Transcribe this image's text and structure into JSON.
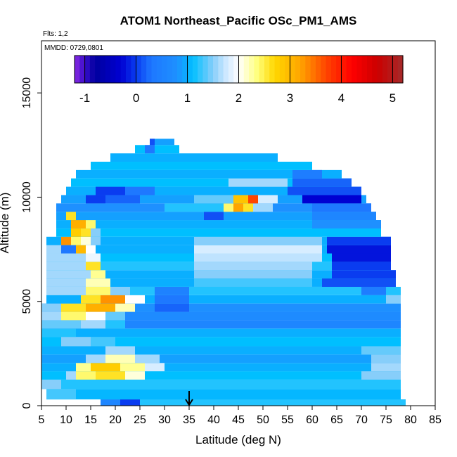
{
  "chart_data": {
    "type": "heatmap",
    "title": "ATOM1 Northeast_Pacific OSc_PM1_AMS",
    "flights_note": "Flts: 1,2",
    "date_note": "MMDD: 0729,0801",
    "xlabel": "Latitude (deg N)",
    "ylabel": "Altitude (m)",
    "xlim": [
      5,
      85
    ],
    "ylim": [
      0,
      17500
    ],
    "x_ticks": [
      5,
      10,
      15,
      20,
      25,
      30,
      35,
      40,
      45,
      50,
      55,
      60,
      65,
      70,
      75,
      80,
      85
    ],
    "y_ticks": [
      0,
      5000,
      10000,
      15000
    ],
    "colorbar": {
      "ticks": [
        -1,
        0,
        1,
        2,
        3,
        4,
        5
      ],
      "range": [
        -1.2,
        5.2
      ],
      "stops": [
        {
          "v": -1.2,
          "c": "#8a2be2"
        },
        {
          "v": -1.0,
          "c": "#3a0dcc"
        },
        {
          "v": -0.8,
          "c": "#00009e"
        },
        {
          "v": -0.3,
          "c": "#0000d2"
        },
        {
          "v": 0.0,
          "c": "#0a3cf0"
        },
        {
          "v": 0.3,
          "c": "#1e78ff"
        },
        {
          "v": 0.8,
          "c": "#1e90ff"
        },
        {
          "v": 1.1,
          "c": "#00bfff"
        },
        {
          "v": 1.5,
          "c": "#87cefa"
        },
        {
          "v": 1.75,
          "c": "#cde8ff"
        },
        {
          "v": 2.0,
          "c": "#ffffff"
        },
        {
          "v": 2.35,
          "c": "#ffff80"
        },
        {
          "v": 2.7,
          "c": "#ffd700"
        },
        {
          "v": 3.2,
          "c": "#ffa500"
        },
        {
          "v": 3.7,
          "c": "#ff4500"
        },
        {
          "v": 4.2,
          "c": "#ff0000"
        },
        {
          "v": 4.7,
          "c": "#cc0000"
        },
        {
          "v": 5.2,
          "c": "#a52a2a"
        }
      ]
    },
    "marker_arrow_latitude": 35,
    "rows": [
      {
        "y0": 0,
        "y1": 300,
        "x0": 17,
        "x1": 79,
        "v": 1.0,
        "hot": [
          [
            17,
            21,
            0.6
          ],
          [
            21,
            25,
            0.0
          ],
          [
            25,
            79,
            1.2
          ]
        ]
      },
      {
        "y0": 300,
        "y1": 800,
        "x0": 6,
        "x1": 78,
        "v": 1.05,
        "hot": [
          [
            6,
            12,
            1.3
          ]
        ]
      },
      {
        "y0": 800,
        "y1": 1250,
        "x0": 5,
        "x1": 78,
        "v": 1.2,
        "hot": [
          [
            5,
            9,
            1.5
          ]
        ]
      },
      {
        "y0": 1250,
        "y1": 1650,
        "x0": 5,
        "x1": 78,
        "v": 1.1,
        "hot": [
          [
            10,
            12,
            1.6
          ],
          [
            12,
            16,
            2.4
          ],
          [
            16,
            22,
            2.6
          ],
          [
            22,
            26,
            2.1
          ],
          [
            70,
            78,
            1.5
          ]
        ]
      },
      {
        "y0": 1650,
        "y1": 2050,
        "x0": 5,
        "x1": 78,
        "v": 1.0,
        "hot": [
          [
            12,
            15,
            2.3
          ],
          [
            15,
            21,
            2.8
          ],
          [
            21,
            26,
            2.3
          ],
          [
            26,
            30,
            1.8
          ],
          [
            72,
            78,
            1.6
          ]
        ]
      },
      {
        "y0": 2050,
        "y1": 2450,
        "x0": 5,
        "x1": 78,
        "v": 0.9,
        "hot": [
          [
            14,
            18,
            1.6
          ],
          [
            18,
            24,
            2.2
          ],
          [
            24,
            29,
            1.6
          ],
          [
            72,
            78,
            1.5
          ]
        ]
      },
      {
        "y0": 2450,
        "y1": 2850,
        "x0": 5,
        "x1": 78,
        "v": 1.0,
        "hot": [
          [
            18,
            24,
            1.6
          ],
          [
            70,
            78,
            1.4
          ]
        ]
      },
      {
        "y0": 2850,
        "y1": 3300,
        "x0": 5,
        "x1": 78,
        "v": 1.1,
        "hot": [
          [
            9,
            15,
            1.5
          ],
          [
            15,
            20,
            1.3
          ]
        ]
      },
      {
        "y0": 3300,
        "y1": 3700,
        "x0": 5,
        "x1": 78,
        "v": 1.0,
        "hot": [
          [
            5,
            12,
            1.2
          ]
        ]
      },
      {
        "y0": 3700,
        "y1": 4100,
        "x0": 5,
        "x1": 78,
        "v": 0.6,
        "hot": [
          [
            5,
            13,
            1.4
          ],
          [
            13,
            18,
            1.6
          ],
          [
            18,
            22,
            1.2
          ]
        ]
      },
      {
        "y0": 4100,
        "y1": 4500,
        "x0": 5,
        "x1": 78,
        "v": 0.7,
        "hot": [
          [
            5,
            9,
            1.6
          ],
          [
            9,
            14,
            2.4
          ],
          [
            14,
            18,
            2.0
          ],
          [
            18,
            22,
            1.4
          ]
        ]
      },
      {
        "y0": 4500,
        "y1": 4900,
        "x0": 5,
        "x1": 78,
        "v": 0.8,
        "hot": [
          [
            5,
            9,
            1.5
          ],
          [
            9,
            14,
            2.6
          ],
          [
            14,
            20,
            3.1
          ],
          [
            20,
            24,
            2.2
          ],
          [
            28,
            35,
            0.2
          ]
        ]
      },
      {
        "y0": 4900,
        "y1": 5300,
        "x0": 6,
        "x1": 78,
        "v": 1.0,
        "hot": [
          [
            13,
            17,
            2.6
          ],
          [
            17,
            22,
            3.3
          ],
          [
            22,
            26,
            2.0
          ],
          [
            28,
            35,
            0.3
          ],
          [
            75,
            78,
            1.5
          ]
        ]
      },
      {
        "y0": 5300,
        "y1": 5700,
        "x0": 6,
        "x1": 78,
        "v": 1.2,
        "hot": [
          [
            6,
            14,
            1.6
          ],
          [
            14,
            19,
            2.4
          ],
          [
            19,
            23,
            1.5
          ],
          [
            28,
            35,
            0.5
          ],
          [
            70,
            75,
            0.4
          ]
        ]
      },
      {
        "y0": 5700,
        "y1": 6100,
        "x0": 6,
        "x1": 77,
        "v": 1.0,
        "hot": [
          [
            6,
            14,
            1.6
          ],
          [
            14,
            19,
            2.2
          ],
          [
            36,
            60,
            1.3
          ],
          [
            62,
            77,
            0.1
          ]
        ]
      },
      {
        "y0": 6100,
        "y1": 6500,
        "x0": 6,
        "x1": 77,
        "v": 1.0,
        "hot": [
          [
            6,
            15,
            1.6
          ],
          [
            15,
            18,
            2.3
          ],
          [
            36,
            60,
            1.5
          ],
          [
            64,
            77,
            0.0
          ]
        ]
      },
      {
        "y0": 6500,
        "y1": 6900,
        "x0": 6,
        "x1": 76,
        "v": 1.2,
        "hot": [
          [
            6,
            14,
            1.6
          ],
          [
            14,
            17,
            2.6
          ],
          [
            36,
            60,
            1.6
          ],
          [
            64,
            76,
            0.0
          ]
        ]
      },
      {
        "y0": 6900,
        "y1": 7300,
        "x0": 6,
        "x1": 76,
        "v": 1.1,
        "hot": [
          [
            6,
            14,
            1.6
          ],
          [
            14,
            17,
            1.9
          ],
          [
            36,
            62,
            1.7
          ],
          [
            64,
            76,
            -0.2
          ]
        ]
      },
      {
        "y0": 7300,
        "y1": 7700,
        "x0": 6,
        "x1": 76,
        "v": 1.0,
        "hot": [
          [
            6,
            9,
            1.6
          ],
          [
            9,
            12,
            0.3
          ],
          [
            12,
            14,
            3.0
          ],
          [
            14,
            16,
            2.0
          ],
          [
            36,
            62,
            1.8
          ],
          [
            63,
            76,
            -0.2
          ]
        ]
      },
      {
        "y0": 7700,
        "y1": 8100,
        "x0": 6,
        "x1": 76,
        "v": 1.0,
        "hot": [
          [
            9,
            11,
            3.3
          ],
          [
            11,
            13,
            2.4
          ],
          [
            13,
            15,
            2.1
          ],
          [
            15,
            17,
            1.5
          ],
          [
            36,
            62,
            1.5
          ],
          [
            63,
            76,
            0.0
          ]
        ]
      },
      {
        "y0": 8100,
        "y1": 8500,
        "x0": 8,
        "x1": 74,
        "v": 1.1,
        "hot": [
          [
            11,
            13,
            2.8
          ],
          [
            13,
            15,
            2.6
          ],
          [
            15,
            17,
            1.5
          ]
        ]
      },
      {
        "y0": 8500,
        "y1": 8900,
        "x0": 8,
        "x1": 74,
        "v": 1.0,
        "hot": [
          [
            11,
            14,
            3.1
          ],
          [
            14,
            16,
            2.4
          ],
          [
            60,
            74,
            0.8
          ]
        ]
      },
      {
        "y0": 8900,
        "y1": 9300,
        "x0": 8,
        "x1": 73,
        "v": 0.9,
        "hot": [
          [
            10,
            12,
            2.6
          ],
          [
            38,
            42,
            0.1
          ],
          [
            60,
            73,
            0.6
          ]
        ]
      },
      {
        "y0": 9300,
        "y1": 9700,
        "x0": 8,
        "x1": 72,
        "v": 0.8,
        "hot": [
          [
            30,
            42,
            1.2
          ],
          [
            42,
            44,
            2.4
          ],
          [
            44,
            46,
            3.2
          ],
          [
            46,
            48,
            2.6
          ],
          [
            48,
            52,
            1.6
          ],
          [
            60,
            72,
            0.3
          ]
        ]
      },
      {
        "y0": 9700,
        "y1": 10100,
        "x0": 9,
        "x1": 71,
        "v": 0.9,
        "hot": [
          [
            14,
            18,
            0.0
          ],
          [
            18,
            25,
            0.2
          ],
          [
            36,
            44,
            1.4
          ],
          [
            44,
            47,
            2.9
          ],
          [
            47,
            49,
            3.7
          ],
          [
            49,
            53,
            1.8
          ],
          [
            58,
            70,
            -0.3
          ]
        ]
      },
      {
        "y0": 10100,
        "y1": 10500,
        "x0": 10,
        "x1": 70,
        "v": 1.0,
        "hot": [
          [
            16,
            22,
            0.0
          ],
          [
            22,
            28,
            0.3
          ],
          [
            55,
            70,
            0.1
          ]
        ]
      },
      {
        "y0": 10500,
        "y1": 10900,
        "x0": 11,
        "x1": 68,
        "v": 1.1,
        "hot": [
          [
            43,
            55,
            1.6
          ],
          [
            56,
            68,
            0.2
          ]
        ]
      },
      {
        "y0": 10900,
        "y1": 11300,
        "x0": 12,
        "x1": 66,
        "v": 1.0,
        "hot": [
          [
            56,
            62,
            0.4
          ]
        ]
      },
      {
        "y0": 11300,
        "y1": 11700,
        "x0": 15,
        "x1": 60,
        "v": 1.1,
        "hot": []
      },
      {
        "y0": 11700,
        "y1": 12100,
        "x0": 19,
        "x1": 53,
        "v": 1.0,
        "hot": []
      },
      {
        "y0": 12100,
        "y1": 12500,
        "x0": 24,
        "x1": 33,
        "v": 1.1,
        "hot": [
          [
            26,
            28,
            0.3
          ]
        ]
      },
      {
        "y0": 12500,
        "y1": 12800,
        "x0": 27,
        "x1": 32,
        "v": 0.9,
        "hot": [
          [
            27,
            28,
            0.1
          ]
        ]
      }
    ]
  }
}
